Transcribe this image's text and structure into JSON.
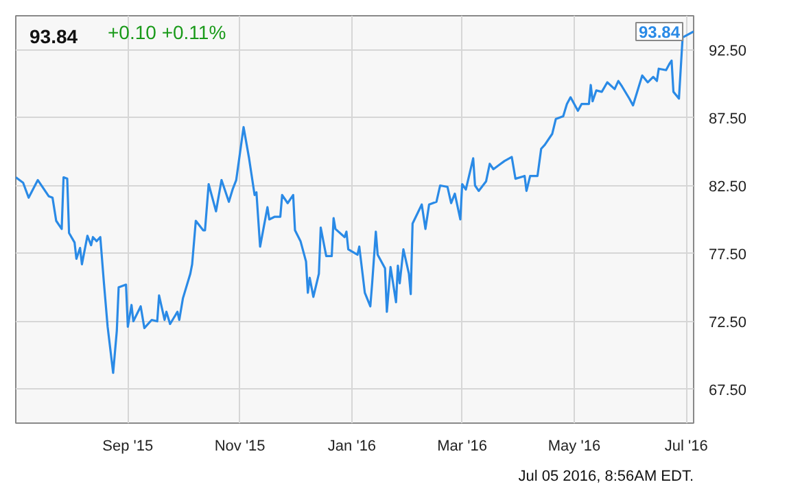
{
  "chart_data": {
    "type": "line",
    "title": "93.84",
    "subtitle": "+0.10  +0.11%",
    "x": [
      "2015-07-02",
      "2015-07-06",
      "2015-07-09",
      "2015-07-14",
      "2015-07-20",
      "2015-07-22",
      "2015-07-24",
      "2015-07-27",
      "2015-07-28",
      "2015-07-30",
      "2015-07-31",
      "2015-08-03",
      "2015-08-04",
      "2015-08-06",
      "2015-08-07",
      "2015-08-10",
      "2015-08-12",
      "2015-08-13",
      "2015-08-15",
      "2015-08-17",
      "2015-08-19",
      "2015-08-21",
      "2015-08-24",
      "2015-08-26",
      "2015-08-27",
      "2015-08-31",
      "2015-09-01",
      "2015-09-03",
      "2015-09-04",
      "2015-09-08",
      "2015-09-10",
      "2015-09-14",
      "2015-09-17",
      "2015-09-18",
      "2015-09-21",
      "2015-09-22",
      "2015-09-24",
      "2015-09-28",
      "2015-09-29",
      "2015-10-01",
      "2015-10-05",
      "2015-10-06",
      "2015-10-08",
      "2015-10-12",
      "2015-10-13",
      "2015-10-15",
      "2015-10-19",
      "2015-10-22",
      "2015-10-26",
      "2015-10-28",
      "2015-10-30",
      "2015-11-03",
      "2015-11-06",
      "2015-11-09",
      "2015-11-10",
      "2015-11-12",
      "2015-11-16",
      "2015-11-17",
      "2015-11-20",
      "2015-11-23",
      "2015-11-24",
      "2015-11-27",
      "2015-11-30",
      "2015-12-01",
      "2015-12-04",
      "2015-12-07",
      "2015-12-08",
      "2015-12-09",
      "2015-12-11",
      "2015-12-14",
      "2015-12-15",
      "2015-12-18",
      "2015-12-21",
      "2015-12-22",
      "2015-12-23",
      "2015-12-28",
      "2015-12-29",
      "2015-12-30",
      "2016-01-04",
      "2016-01-05",
      "2016-01-08",
      "2016-01-11",
      "2016-01-12",
      "2016-01-14",
      "2016-01-15",
      "2016-01-19",
      "2016-01-20",
      "2016-01-22",
      "2016-01-25",
      "2016-01-26",
      "2016-01-27",
      "2016-01-29",
      "2016-02-01",
      "2016-02-02",
      "2016-02-03",
      "2016-02-08",
      "2016-02-10",
      "2016-02-12",
      "2016-02-16",
      "2016-02-18",
      "2016-02-22",
      "2016-02-24",
      "2016-02-26",
      "2016-02-29",
      "2016-03-01",
      "2016-03-03",
      "2016-03-07",
      "2016-03-08",
      "2016-03-10",
      "2016-03-14",
      "2016-03-16",
      "2016-03-18",
      "2016-03-21",
      "2016-03-24",
      "2016-03-28",
      "2016-03-30",
      "2016-04-04",
      "2016-04-05",
      "2016-04-07",
      "2016-04-11",
      "2016-04-13",
      "2016-04-15",
      "2016-04-19",
      "2016-04-21",
      "2016-04-25",
      "2016-04-27",
      "2016-04-29",
      "2016-05-03",
      "2016-05-05",
      "2016-05-09",
      "2016-05-10",
      "2016-05-11",
      "2016-05-13",
      "2016-05-16",
      "2016-05-19",
      "2016-05-23",
      "2016-05-25",
      "2016-05-27",
      "2016-05-31",
      "2016-06-02",
      "2016-06-07",
      "2016-06-10",
      "2016-06-13",
      "2016-06-15",
      "2016-06-16",
      "2016-06-20",
      "2016-06-22",
      "2016-06-23",
      "2016-06-24",
      "2016-06-27",
      "2016-06-29",
      "2016-07-05"
    ],
    "series": [
      {
        "color": "#2a8ae6",
        "values": [
          83.1,
          82.7,
          81.6,
          82.9,
          81.7,
          81.6,
          79.9,
          79.3,
          83.1,
          83.0,
          79.0,
          78.3,
          77.1,
          77.9,
          76.7,
          78.8,
          78.1,
          78.7,
          78.4,
          78.7,
          75.3,
          72.1,
          68.7,
          71.8,
          75.0,
          75.2,
          72.1,
          73.7,
          72.5,
          73.6,
          72.0,
          72.6,
          72.5,
          74.4,
          72.6,
          73.2,
          72.3,
          73.2,
          72.6,
          74.2,
          76.0,
          76.7,
          79.9,
          79.2,
          79.2,
          82.6,
          80.6,
          82.9,
          81.3,
          82.2,
          82.9,
          86.8,
          84.5,
          81.8,
          82.0,
          78.0,
          80.9,
          80.0,
          80.2,
          80.2,
          81.8,
          81.2,
          81.8,
          79.2,
          78.4,
          76.9,
          74.6,
          75.7,
          74.3,
          76.0,
          79.4,
          77.3,
          77.3,
          80.1,
          79.3,
          78.7,
          79.1,
          77.8,
          77.4,
          78.0,
          74.6,
          73.6,
          75.3,
          79.1,
          77.4,
          76.4,
          73.2,
          76.5,
          73.9,
          76.6,
          75.3,
          77.8,
          76.0,
          74.5,
          79.7,
          81.1,
          79.3,
          81.1,
          81.3,
          82.5,
          82.4,
          81.2,
          81.9,
          80.0,
          82.6,
          82.2,
          84.5,
          82.5,
          82.1,
          82.8,
          84.1,
          83.7,
          84.0,
          84.3,
          84.6,
          83.0,
          83.2,
          82.1,
          83.2,
          83.2,
          85.2,
          85.5,
          86.3,
          87.4,
          87.6,
          88.5,
          89.0,
          88.0,
          88.5,
          88.5,
          89.9,
          88.7,
          89.5,
          89.4,
          90.1,
          89.6,
          90.2,
          89.8,
          88.9,
          88.4,
          90.6,
          90.1,
          90.5,
          90.2,
          91.1,
          91.0,
          91.5,
          91.7,
          89.4,
          88.9,
          93.4,
          93.84
        ]
      }
    ],
    "xlim": [
      "2015-07-02",
      "2016-07-05"
    ],
    "xticks": [
      {
        "value": "2015-09-01",
        "label": "Sep '15"
      },
      {
        "value": "2015-11-01",
        "label": "Nov '15"
      },
      {
        "value": "2016-01-01",
        "label": "Jan '16"
      },
      {
        "value": "2016-03-01",
        "label": "Mar '16"
      },
      {
        "value": "2016-05-01",
        "label": "May '16"
      },
      {
        "value": "2016-07-01",
        "label": "Jul '16"
      }
    ],
    "ylim": [
      65,
      95
    ],
    "yticks": [
      {
        "value": 67.5,
        "label": "67.50"
      },
      {
        "value": 72.5,
        "label": "72.50"
      },
      {
        "value": 77.5,
        "label": "77.50"
      },
      {
        "value": 82.5,
        "label": "82.50"
      },
      {
        "value": 87.5,
        "label": "87.50"
      },
      {
        "value": 92.5,
        "label": "92.50"
      }
    ],
    "grid": true,
    "marker": "none",
    "line_style": "solid",
    "annotations": [
      {
        "text": "93.84",
        "x": "2016-07-05",
        "y": 93.84
      },
      "Jul 05 2016, 8:56AM EDT."
    ]
  }
}
